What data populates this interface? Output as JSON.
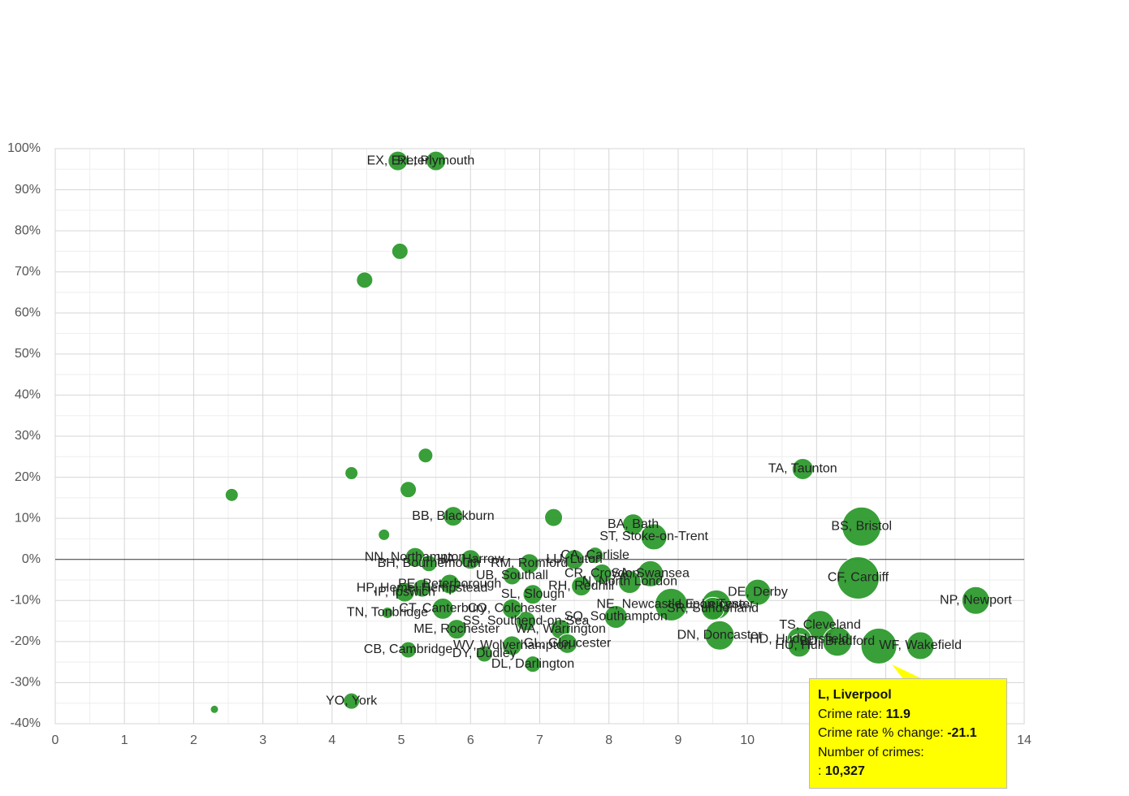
{
  "chart_data": {
    "type": "bubble",
    "xlim": [
      0,
      14
    ],
    "xticks": [
      0,
      1,
      2,
      3,
      4,
      5,
      6,
      7,
      8,
      9,
      10,
      11,
      12,
      13,
      14
    ],
    "ylim": [
      -40,
      100
    ],
    "yticks": [
      {
        "value": -40,
        "label": "-40%"
      },
      {
        "value": -30,
        "label": "-30%"
      },
      {
        "value": -20,
        "label": "-20%"
      },
      {
        "value": -10,
        "label": "-10%"
      },
      {
        "value": 0,
        "label": "0%"
      },
      {
        "value": 10,
        "label": "10%"
      },
      {
        "value": 20,
        "label": "20%"
      },
      {
        "value": 30,
        "label": "30%"
      },
      {
        "value": 40,
        "label": "40%"
      },
      {
        "value": 50,
        "label": "50%"
      },
      {
        "value": 60,
        "label": "60%"
      },
      {
        "value": 70,
        "label": "70%"
      },
      {
        "value": 80,
        "label": "80%"
      },
      {
        "value": 90,
        "label": "90%"
      },
      {
        "value": 100,
        "label": "100%"
      }
    ],
    "grid": true,
    "color": "#2e9a2e",
    "series": [
      {
        "x": [
          4.95,
          5.5,
          4.98,
          4.47,
          10.8,
          5.35,
          4.28,
          2.55,
          5.1,
          4.75,
          5.75,
          7.2,
          8.35,
          8.65,
          11.65,
          11.6,
          13.3,
          10.15,
          7.8,
          7.5,
          6.0,
          5.4,
          8.6,
          8.9,
          9.5,
          11.05,
          10.75,
          10.75,
          11.3,
          12.5,
          11.9,
          9.6,
          9.55,
          6.9,
          6.8,
          6.6,
          5.6,
          4.8,
          5.05,
          5.3,
          5.1,
          5.8,
          7.3,
          7.4,
          6.6,
          6.2,
          6.9,
          4.28,
          2.3,
          7.6,
          7.9,
          8.1,
          6.6,
          8.3,
          5.7,
          6.85,
          5.2
        ],
        "values": [
          97,
          97,
          75,
          68,
          22,
          25.3,
          21,
          15.7,
          17,
          6,
          10.5,
          10.2,
          8.5,
          5.5,
          8,
          -4.5,
          -10,
          -8,
          1,
          0,
          0,
          -1,
          -3.5,
          -11,
          -12,
          -16,
          -19.5,
          -21,
          -20,
          -21,
          -21.1,
          -18.5,
          -11,
          -8.5,
          -15,
          -12,
          -12,
          -13,
          -8,
          -7,
          -22,
          -17,
          -17,
          -20.5,
          -21,
          -23,
          -25.5,
          -34.5,
          -36.5,
          -6.5,
          -3.5,
          -14,
          -4,
          -5.5,
          -6,
          -1,
          0.5
        ],
        "sizes": [
          3073,
          3073,
          2134,
          2134,
          3606,
          1729,
          1366,
          1366,
          2134,
          1045,
          3073,
          2582,
          3606,
          5463,
          12290,
          14424,
          6166,
          5463,
          2134,
          3073,
          3073,
          2134,
          5463,
          8535,
          4183,
          6914,
          4801,
          4183,
          6914,
          6166,
          10327,
          6914,
          6914,
          3073,
          3073,
          3073,
          3606,
          1045,
          3073,
          2582,
          2134,
          3073,
          3073,
          3073,
          3073,
          2134,
          2134,
          2134,
          533,
          3073,
          3073,
          4183,
          2582,
          4183,
          3073,
          3073,
          3073
        ],
        "labels": [
          "EX, Exeter",
          "PL, Plymouth",
          null,
          null,
          "TA, Taunton",
          null,
          null,
          null,
          null,
          null,
          "BB, Blackburn",
          null,
          "BA, Bath",
          "ST, Stoke-on-Trent",
          "BS, Bristol",
          "CF, Cardiff",
          "NP, Newport",
          "DE, Derby",
          "CA, Carlisle",
          "LU, Luton",
          "HA, Harrow",
          "BH, Bournemouth",
          "SA, Swansea",
          "NE, Newcastle upon Tyne",
          "SR, Sunderland",
          "TS, Cleveland",
          "HD, Huddersfield",
          "HU, Hull",
          "BD, Bradford",
          "WF, Wakefield",
          null,
          "DN, Doncaster",
          "LE, Leicester",
          "SL, Slough",
          "SS, Southend-on-Sea",
          "CO, Colchester",
          "CT, Canterbury",
          "TN, Tonbridge",
          "IP, Ipswich",
          "HP, Hemel Hempstead",
          "CB, Cambridge",
          "ME, Rochester",
          "WA, Warrington",
          "GL, Gloucester",
          "WV, Wolverhampton",
          "DY, Dudley",
          "DL, Darlington",
          "YO, York",
          null,
          "RH, Redhill",
          "CR, Croydon",
          "SO, Southampton",
          "UB, Southall",
          "N, North London",
          "PE, Peterborough",
          "RM, Romford",
          "NN, Northampton"
        ]
      }
    ],
    "tooltip": {
      "title": "L, Liverpool",
      "rows": [
        {
          "label": "Crime rate:",
          "value": "11.9"
        },
        {
          "label": "Crime rate % change:",
          "value": "-21.1"
        },
        {
          "label": "Number of crimes:",
          "value": "10,327"
        }
      ],
      "separator": ":"
    }
  }
}
